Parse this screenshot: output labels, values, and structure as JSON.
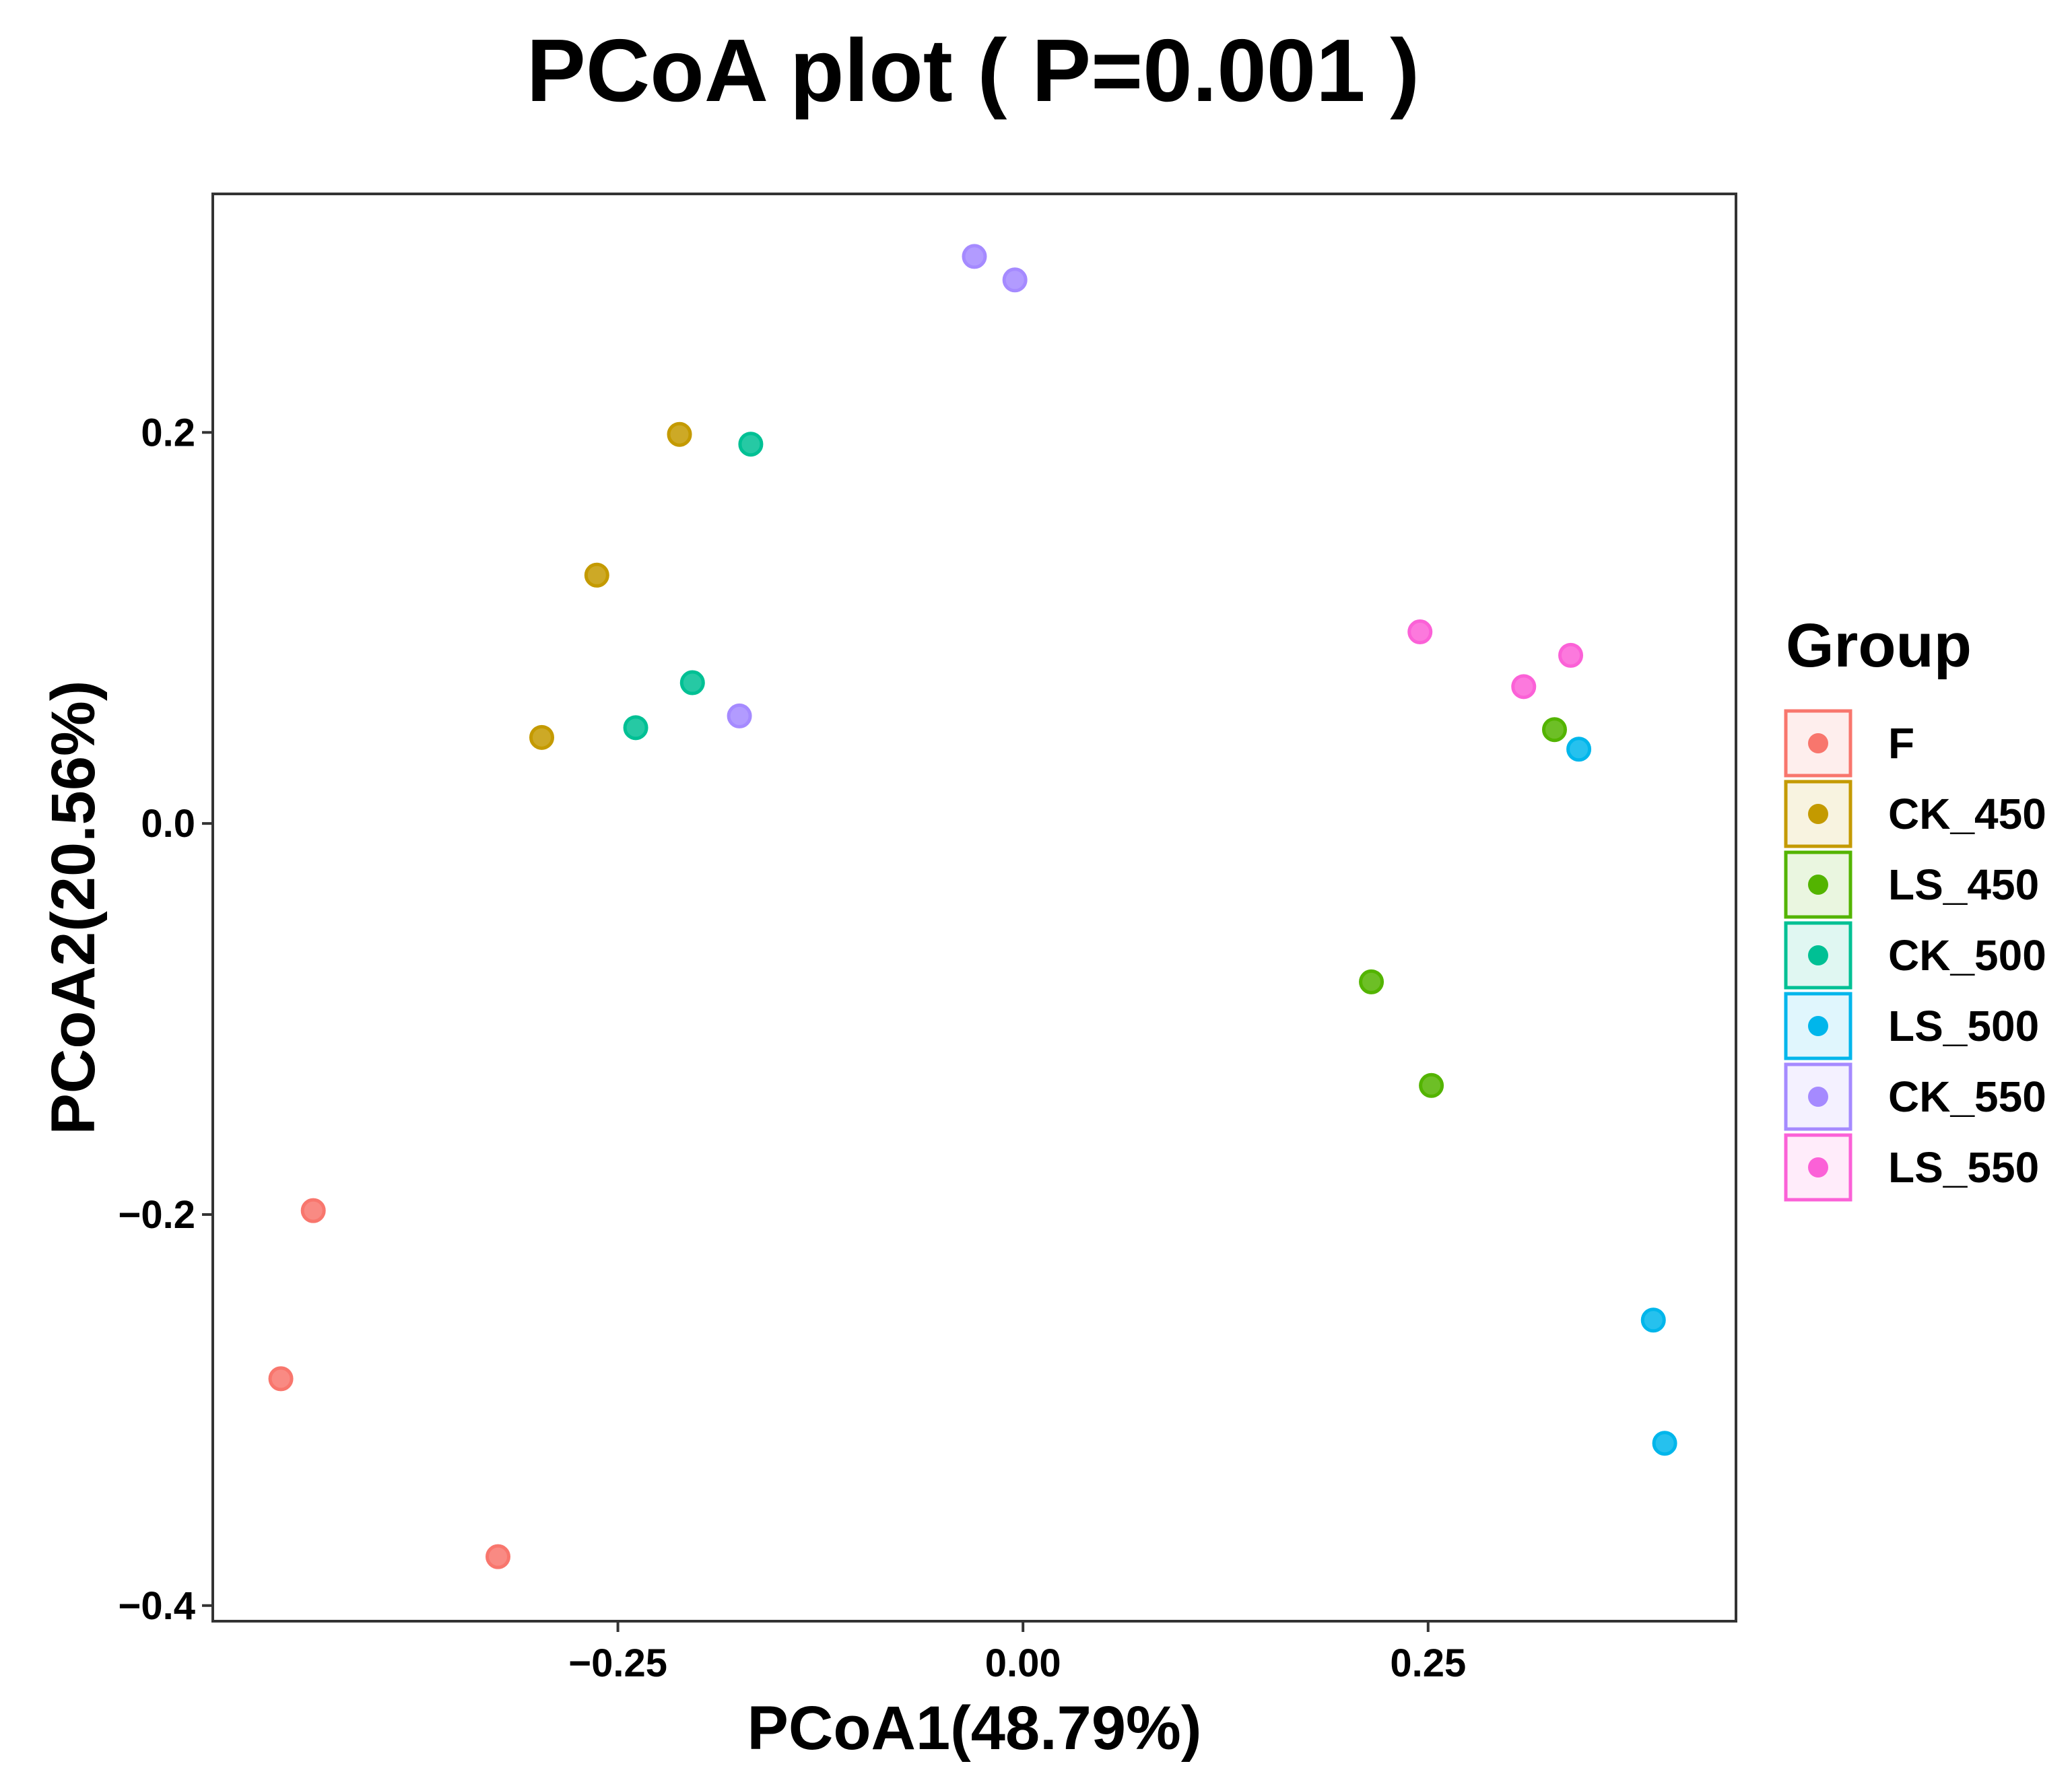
{
  "chart_data": {
    "type": "scatter",
    "title": "PCoA plot ( P=0.001 )",
    "xlabel": "PCoA1(48.79%)",
    "ylabel": "PCoA2(20.56%)",
    "xlim": [
      -0.5,
      0.44
    ],
    "ylim": [
      -0.408,
      0.322
    ],
    "grid": false,
    "legend_position": "right",
    "legend_title": "Group",
    "x_ticks": [
      {
        "value": -0.25,
        "label": "−0.25"
      },
      {
        "value": 0.0,
        "label": "0.00"
      },
      {
        "value": 0.25,
        "label": "0.25"
      }
    ],
    "y_ticks": [
      {
        "value": 0.2,
        "label": "0.2"
      },
      {
        "value": 0.0,
        "label": "0.0"
      },
      {
        "value": -0.2,
        "label": "−0.2"
      },
      {
        "value": -0.4,
        "label": "−0.4"
      }
    ],
    "series": [
      {
        "name": "F",
        "color": "#F8766D",
        "points": [
          [
            -0.438,
            -0.198
          ],
          [
            -0.458,
            -0.284
          ],
          [
            -0.324,
            -0.375
          ]
        ]
      },
      {
        "name": "CK_450",
        "color": "#C49A00",
        "points": [
          [
            -0.212,
            0.199
          ],
          [
            -0.263,
            0.127
          ],
          [
            -0.297,
            0.044
          ]
        ]
      },
      {
        "name": "LS_450",
        "color": "#53B400",
        "points": [
          [
            0.328,
            0.048
          ],
          [
            0.215,
            -0.081
          ],
          [
            0.252,
            -0.134
          ]
        ]
      },
      {
        "name": "CK_500",
        "color": "#00C094",
        "points": [
          [
            -0.168,
            0.194
          ],
          [
            -0.204,
            0.072
          ],
          [
            -0.239,
            0.049
          ]
        ]
      },
      {
        "name": "LS_500",
        "color": "#00B6EB",
        "points": [
          [
            0.343,
            0.038
          ],
          [
            0.389,
            -0.254
          ],
          [
            0.396,
            -0.317
          ]
        ]
      },
      {
        "name": "CK_550",
        "color": "#A58AFF",
        "points": [
          [
            -0.03,
            0.29
          ],
          [
            -0.005,
            0.278
          ],
          [
            -0.175,
            0.055
          ]
        ]
      },
      {
        "name": "LS_550",
        "color": "#FB61D7",
        "points": [
          [
            0.245,
            0.098
          ],
          [
            0.338,
            0.086
          ],
          [
            0.309,
            0.07
          ]
        ]
      }
    ]
  }
}
